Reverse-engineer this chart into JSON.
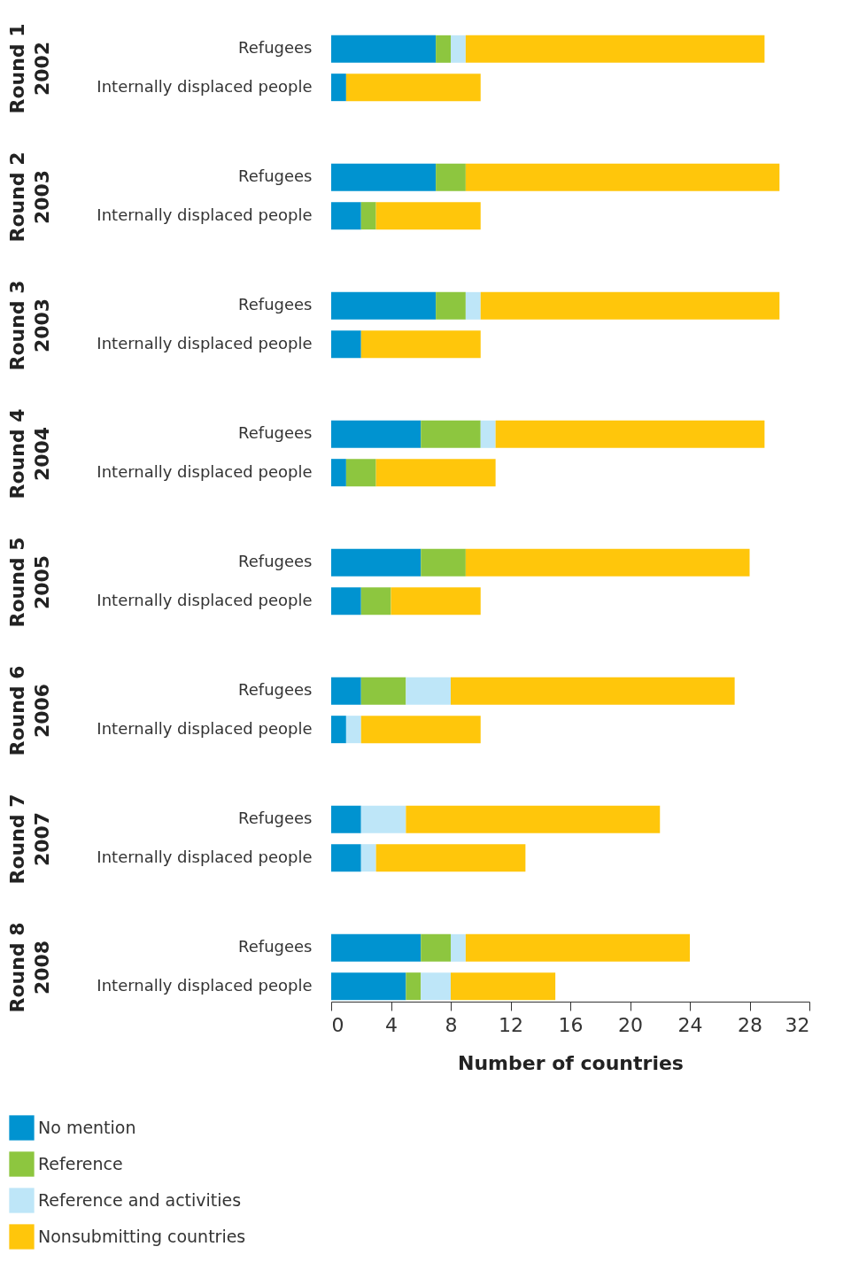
{
  "chart_data": [
    {
      "type": "bar",
      "orientation": "horizontal",
      "stacked": true,
      "ylabel": "Round 1\n2002",
      "categories": [
        "Refugees",
        "Internally displaced people"
      ],
      "xlim": [
        0,
        32
      ],
      "tick_labels": "y",
      "series": [
        {
          "color": "#0093d0",
          "values": [
            7,
            1
          ]
        },
        {
          "color": "#8dc63f",
          "values": [
            1,
            0
          ]
        },
        {
          "color": "#bee6f8",
          "values": [
            1,
            0
          ]
        },
        {
          "color": "#ffc60b",
          "values": [
            20,
            9
          ]
        }
      ]
    },
    {
      "type": "bar",
      "orientation": "horizontal",
      "stacked": true,
      "ylabel": "Round 2\n2003",
      "categories": [
        "Refugees",
        "Internally displaced people"
      ],
      "xlim": [
        0,
        32
      ],
      "tick_labels": "y",
      "series": [
        {
          "color": "#0093d0",
          "values": [
            7,
            2
          ]
        },
        {
          "color": "#8dc63f",
          "values": [
            2,
            1
          ]
        },
        {
          "color": "#bee6f8",
          "values": [
            0,
            0
          ]
        },
        {
          "color": "#ffc60b",
          "values": [
            21,
            7
          ]
        }
      ]
    },
    {
      "type": "bar",
      "orientation": "horizontal",
      "stacked": true,
      "ylabel": "Round 3\n2003",
      "categories": [
        "Refugees",
        "Internally displaced people"
      ],
      "xlim": [
        0,
        32
      ],
      "tick_labels": "y",
      "series": [
        {
          "color": "#0093d0",
          "values": [
            7,
            2
          ]
        },
        {
          "color": "#8dc63f",
          "values": [
            2,
            0
          ]
        },
        {
          "color": "#bee6f8",
          "values": [
            1,
            0
          ]
        },
        {
          "color": "#ffc60b",
          "values": [
            20,
            8
          ]
        }
      ]
    },
    {
      "type": "bar",
      "orientation": "horizontal",
      "stacked": true,
      "ylabel": "Round 4\n2004",
      "categories": [
        "Refugees",
        "Internally displaced people"
      ],
      "xlim": [
        0,
        32
      ],
      "tick_labels": "y",
      "series": [
        {
          "color": "#0093d0",
          "values": [
            6,
            1
          ]
        },
        {
          "color": "#8dc63f",
          "values": [
            4,
            2
          ]
        },
        {
          "color": "#bee6f8",
          "values": [
            1,
            0
          ]
        },
        {
          "color": "#ffc60b",
          "values": [
            18,
            8
          ]
        }
      ]
    },
    {
      "type": "bar",
      "orientation": "horizontal",
      "stacked": true,
      "ylabel": "Round 5\n2005",
      "categories": [
        "Refugees",
        "Internally displaced people"
      ],
      "xlim": [
        0,
        32
      ],
      "tick_labels": "y",
      "series": [
        {
          "color": "#0093d0",
          "values": [
            6,
            2
          ]
        },
        {
          "color": "#8dc63f",
          "values": [
            3,
            2
          ]
        },
        {
          "color": "#bee6f8",
          "values": [
            0,
            0
          ]
        },
        {
          "color": "#ffc60b",
          "values": [
            19,
            6
          ]
        }
      ]
    },
    {
      "type": "bar",
      "orientation": "horizontal",
      "stacked": true,
      "ylabel": "Round 6\n2006",
      "categories": [
        "Refugees",
        "Internally displaced people"
      ],
      "xlim": [
        0,
        32
      ],
      "tick_labels": "y",
      "series": [
        {
          "color": "#0093d0",
          "values": [
            2,
            1
          ]
        },
        {
          "color": "#8dc63f",
          "values": [
            3,
            0
          ]
        },
        {
          "color": "#bee6f8",
          "values": [
            3,
            1
          ]
        },
        {
          "color": "#ffc60b",
          "values": [
            19,
            8
          ]
        }
      ]
    },
    {
      "type": "bar",
      "orientation": "horizontal",
      "stacked": true,
      "ylabel": "Round 7\n2007",
      "categories": [
        "Refugees",
        "Internally displaced people"
      ],
      "xlim": [
        0,
        32
      ],
      "tick_labels": "y",
      "series": [
        {
          "color": "#0093d0",
          "values": [
            2,
            2
          ]
        },
        {
          "color": "#8dc63f",
          "values": [
            0,
            0
          ]
        },
        {
          "color": "#bee6f8",
          "values": [
            3,
            1
          ]
        },
        {
          "color": "#ffc60b",
          "values": [
            17,
            10
          ]
        }
      ]
    },
    {
      "type": "bar",
      "orientation": "horizontal",
      "stacked": true,
      "ylabel": "Round 8\n2008",
      "xlabel": "Number of countries",
      "categories": [
        "Refugees",
        "Internally displaced people"
      ],
      "xlim": [
        0,
        32
      ],
      "xticks": [
        0,
        4,
        8,
        12,
        16,
        20,
        24,
        28,
        32
      ],
      "legend": "bottom left",
      "series": [
        {
          "name": "No mention",
          "color": "#0093d0",
          "values": [
            6,
            5
          ]
        },
        {
          "name": "Reference",
          "color": "#8dc63f",
          "values": [
            2,
            1
          ]
        },
        {
          "name": "Reference and activities",
          "color": "#bee6f8",
          "values": [
            1,
            2
          ]
        },
        {
          "name": "Nonsubmitting countries",
          "color": "#ffc60b",
          "values": [
            15,
            7
          ]
        }
      ]
    }
  ]
}
